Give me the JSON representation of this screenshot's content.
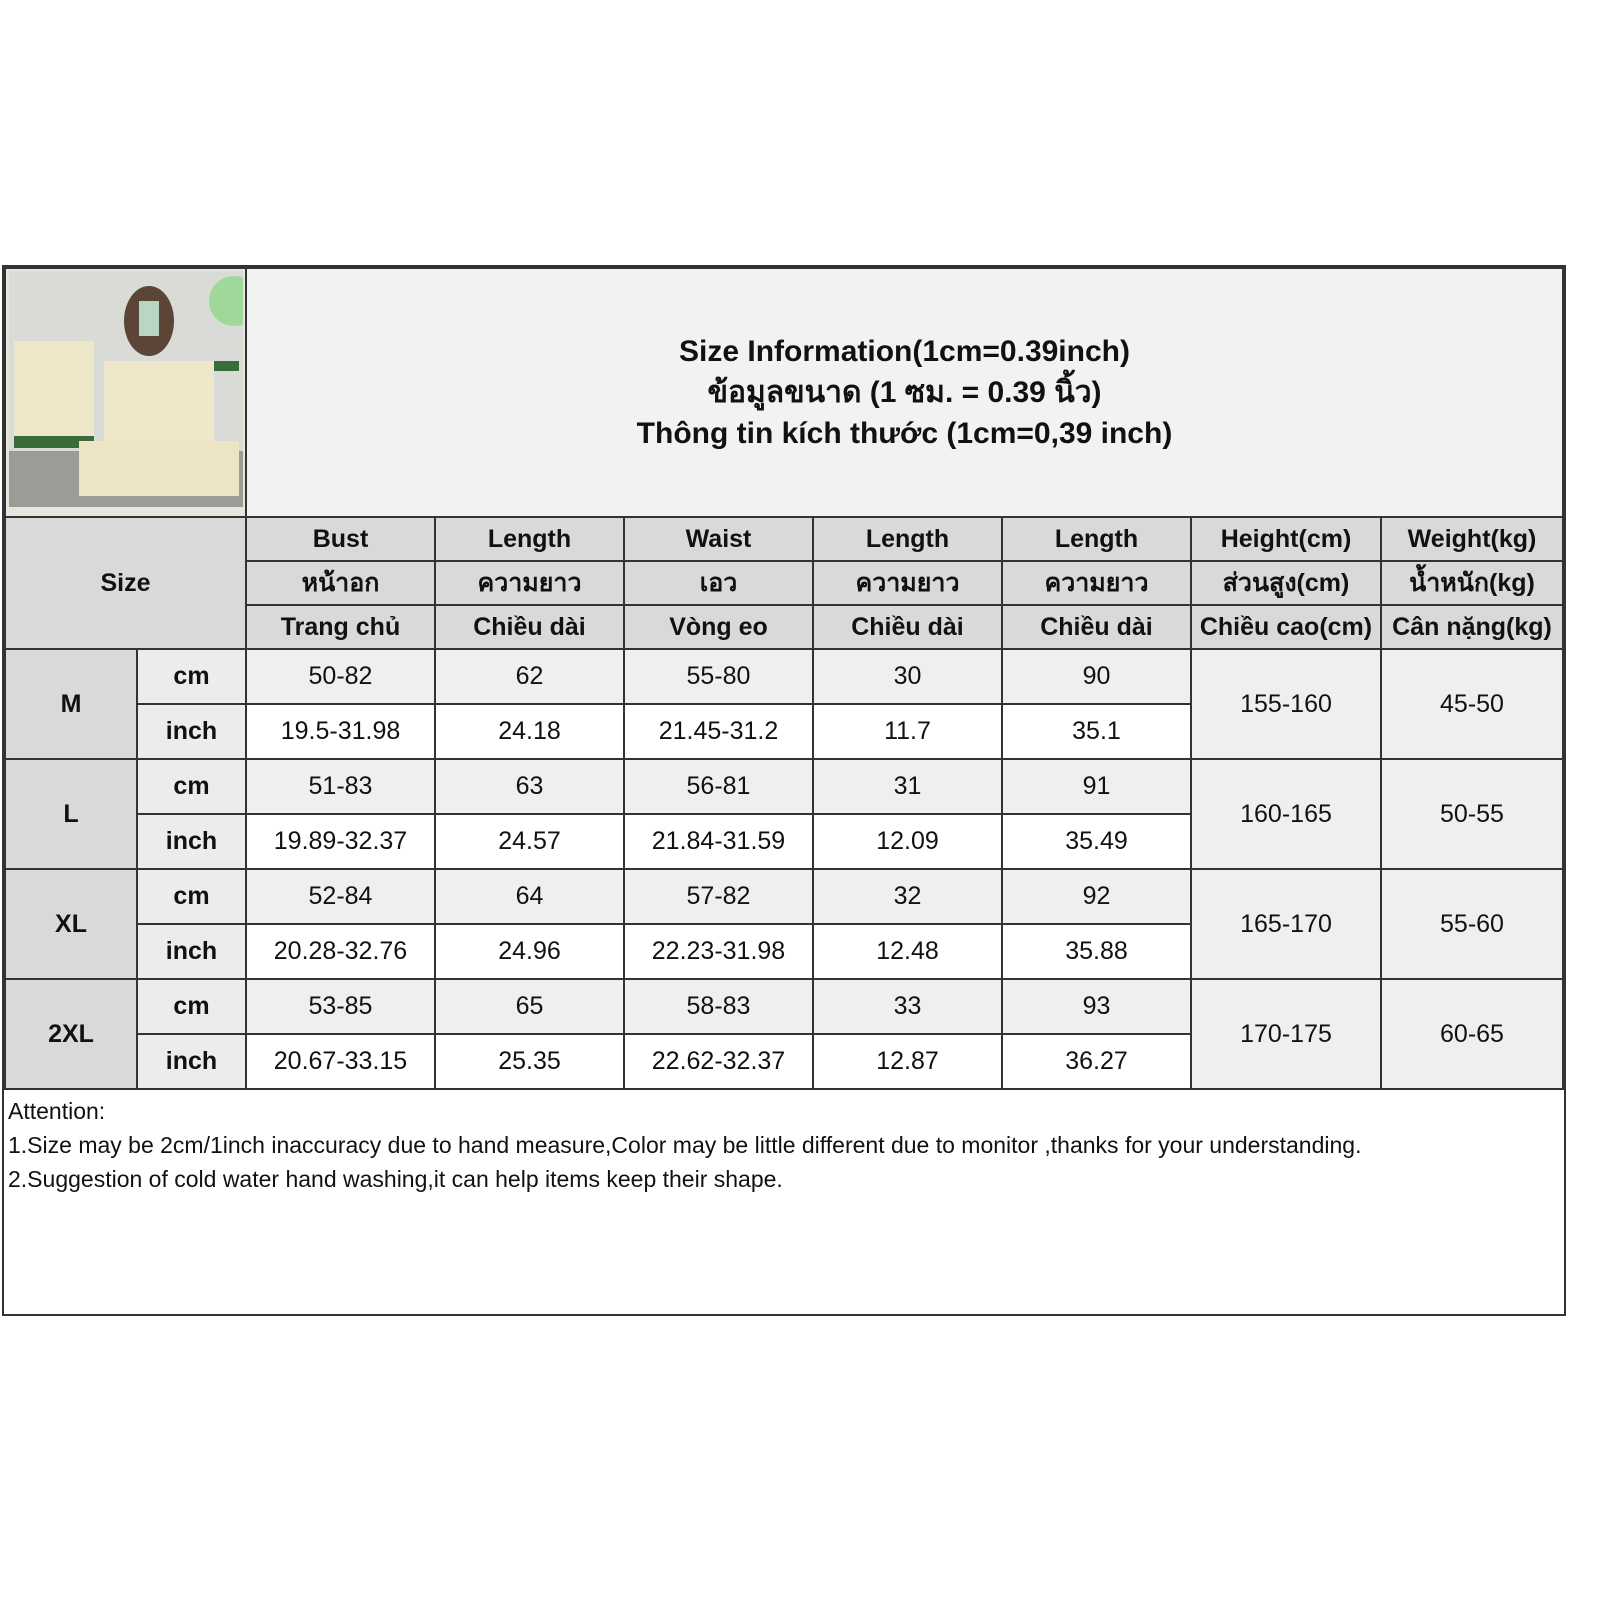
{
  "title": {
    "en": "Size Information(1cm=0.39inch)",
    "th": "ข้อมูลขนาด (1 ซม. = 0.39 นิ้ว)",
    "vi": "Thông tin kích thước (1cm=0,39 inch)"
  },
  "size_header": "Size",
  "columns": [
    {
      "en": "Bust",
      "th": "หน้าอก",
      "vi": "Trang chủ"
    },
    {
      "en": "Length",
      "th": "ความยาว",
      "vi": "Chiều dài"
    },
    {
      "en": "Waist",
      "th": "เอว",
      "vi": "Vòng eo"
    },
    {
      "en": "Length",
      "th": "ความยาว",
      "vi": "Chiều dài"
    },
    {
      "en": "Length",
      "th": "ความยาว",
      "vi": "Chiều dài"
    },
    {
      "en": "Height(cm)",
      "th": "ส่วนสูง(cm)",
      "vi": "Chiều cao(cm)"
    },
    {
      "en": "Weight(kg)",
      "th": "น้ำหนัก(kg)",
      "vi": "Cân nặng(kg)"
    }
  ],
  "units": {
    "cm": "cm",
    "inch": "inch"
  },
  "rows": [
    {
      "size": "M",
      "cm": [
        "50-82",
        "62",
        "55-80",
        "30",
        "90"
      ],
      "inch": [
        "19.5-31.98",
        "24.18",
        "21.45-31.2",
        "11.7",
        "35.1"
      ],
      "height": "155-160",
      "weight": "45-50"
    },
    {
      "size": "L",
      "cm": [
        "51-83",
        "63",
        "56-81",
        "31",
        "91"
      ],
      "inch": [
        "19.89-32.37",
        "24.57",
        "21.84-31.59",
        "12.09",
        "35.49"
      ],
      "height": "160-165",
      "weight": "50-55"
    },
    {
      "size": "XL",
      "cm": [
        "52-84",
        "64",
        "57-82",
        "32",
        "92"
      ],
      "inch": [
        "20.28-32.76",
        "24.96",
        "22.23-31.98",
        "12.48",
        "35.88"
      ],
      "height": "165-170",
      "weight": "55-60"
    },
    {
      "size": "2XL",
      "cm": [
        "53-85",
        "65",
        "58-83",
        "33",
        "93"
      ],
      "inch": [
        "20.67-33.15",
        "25.35",
        "22.62-32.37",
        "12.87",
        "36.27"
      ],
      "height": "170-175",
      "weight": "60-65"
    }
  ],
  "notes": [
    "Attention:",
    "1.Size may be 2cm/1inch inaccuracy due to hand measure,Color may be little different due to monitor ,thanks for your understanding.",
    "2.Suggestion of cold water hand washing,it can help items keep their shape."
  ]
}
